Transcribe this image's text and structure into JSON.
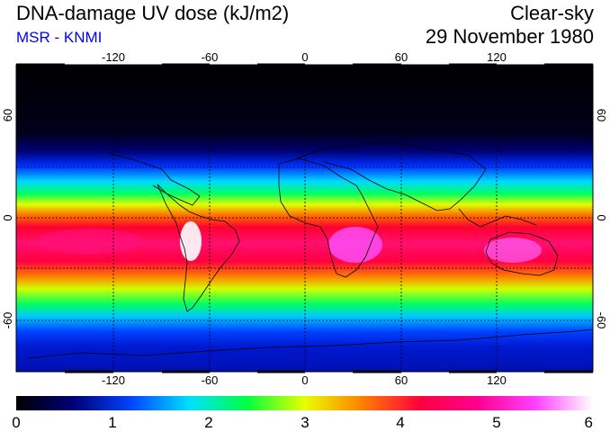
{
  "header": {
    "title": "DNA-damage UV dose (kJ/m2)",
    "source": "MSR - KNMI",
    "source_color": "#0000ff",
    "mode": "Clear-sky",
    "date": "29 November 1980"
  },
  "map": {
    "lon_ticks": [
      "-120",
      "-60",
      "0",
      "60",
      "120"
    ],
    "lat_ticks": [
      "60",
      "0",
      "-60"
    ]
  },
  "colorbar": {
    "labels": [
      "0",
      "1",
      "2",
      "3",
      "4",
      "5",
      "6"
    ],
    "min": 0,
    "max": 6,
    "stops": [
      "#000000",
      "#00007a",
      "#0044ff",
      "#00e0ff",
      "#00ff40",
      "#e8ff00",
      "#ff8000",
      "#ff0040",
      "#ff0090",
      "#ff40ff",
      "#ffffff"
    ]
  }
}
